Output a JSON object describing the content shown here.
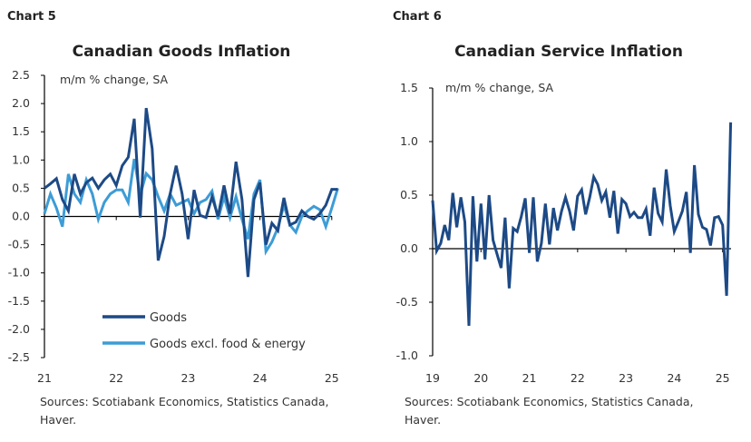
{
  "colors": {
    "goods": "#1d4a86",
    "core": "#3d9cd6",
    "axis": "#000000"
  },
  "chart_data": [
    {
      "label": "Chart 5",
      "type": "line",
      "title": "Canadian Goods Inflation",
      "unit_label": "m/m % change, SA",
      "ylim": [
        -2.5,
        2.5
      ],
      "yticks": [
        "2.5",
        "2.0",
        "1.5",
        "1.0",
        "0.5",
        "0.0",
        "-0.5",
        "-1.0",
        "-1.5",
        "-2.0",
        "-2.5"
      ],
      "xticks": [
        "21",
        "22",
        "23",
        "24",
        "25"
      ],
      "x_start": "2021-01",
      "x_end": "2025-02",
      "frequency": "monthly",
      "grid": false,
      "legend_position": "bottom-center",
      "series": [
        {
          "name": "Goods",
          "color": "#1d4a86",
          "values": [
            0.5,
            0.58,
            0.67,
            0.3,
            0.1,
            0.75,
            0.4,
            0.6,
            0.68,
            0.5,
            0.65,
            0.75,
            0.55,
            0.9,
            1.05,
            1.73,
            -0.02,
            1.92,
            1.2,
            -0.78,
            -0.35,
            0.4,
            0.9,
            0.4,
            -0.4,
            0.47,
            0.02,
            -0.02,
            0.35,
            0.0,
            0.55,
            0.05,
            0.97,
            0.3,
            -1.07,
            0.3,
            0.6,
            -0.5,
            -0.12,
            -0.25,
            0.33,
            -0.15,
            -0.1,
            0.1,
            0.0,
            -0.05,
            0.05,
            0.2,
            0.48,
            0.48
          ]
        },
        {
          "name": "Goods excl. food & energy",
          "color": "#3d9cd6",
          "values": [
            0.05,
            0.4,
            0.15,
            -0.18,
            0.75,
            0.4,
            0.25,
            0.65,
            0.4,
            -0.05,
            0.25,
            0.4,
            0.47,
            0.47,
            0.25,
            1.02,
            0.38,
            0.76,
            0.65,
            0.35,
            0.1,
            0.4,
            0.2,
            0.25,
            0.3,
            0.05,
            0.25,
            0.3,
            0.45,
            -0.05,
            0.35,
            -0.02,
            0.35,
            -0.05,
            -0.4,
            0.4,
            0.65,
            -0.62,
            -0.45,
            -0.2,
            0.2,
            -0.15,
            -0.28,
            0.0,
            0.1,
            0.18,
            0.12,
            -0.18,
            0.15,
            0.5
          ]
        }
      ],
      "sources": [
        "Sources: Scotiabank Economics, Statistics Canada,",
        "Haver."
      ]
    },
    {
      "label": "Chart 6",
      "type": "line",
      "title": "Canadian Service Inflation",
      "unit_label": "m/m % change, SA",
      "ylim": [
        -1.0,
        1.5
      ],
      "yticks": [
        "1.5",
        "1.0",
        "0.5",
        "0.0",
        "-0.5",
        "-1.0"
      ],
      "xticks": [
        "19",
        "20",
        "21",
        "22",
        "23",
        "24",
        "25"
      ],
      "x_start": "2019-01",
      "x_end": "2025-03",
      "frequency": "monthly",
      "grid": false,
      "series": [
        {
          "color": "#1d4a86",
          "values": [
            0.45,
            -0.02,
            0.05,
            0.22,
            0.08,
            0.52,
            0.2,
            0.48,
            0.25,
            -0.72,
            0.49,
            -0.12,
            0.42,
            -0.1,
            0.5,
            0.08,
            -0.05,
            -0.18,
            0.29,
            -0.37,
            0.19,
            0.16,
            0.3,
            0.47,
            -0.04,
            0.48,
            -0.12,
            0.05,
            0.42,
            0.04,
            0.38,
            0.17,
            0.35,
            0.48,
            0.35,
            0.17,
            0.49,
            0.55,
            0.32,
            0.48,
            0.67,
            0.6,
            0.45,
            0.53,
            0.29,
            0.54,
            0.14,
            0.46,
            0.42,
            0.3,
            0.34,
            0.29,
            0.29,
            0.37,
            0.12,
            0.57,
            0.33,
            0.25,
            0.74,
            0.4,
            0.16,
            0.25,
            0.35,
            0.53,
            -0.04,
            0.78,
            0.32,
            0.2,
            0.18,
            0.03,
            0.29,
            0.3,
            0.22,
            -0.44,
            1.18
          ]
        }
      ],
      "sources": [
        "Sources: Scotiabank Economics, Statistics Canada,",
        "Haver."
      ]
    }
  ]
}
